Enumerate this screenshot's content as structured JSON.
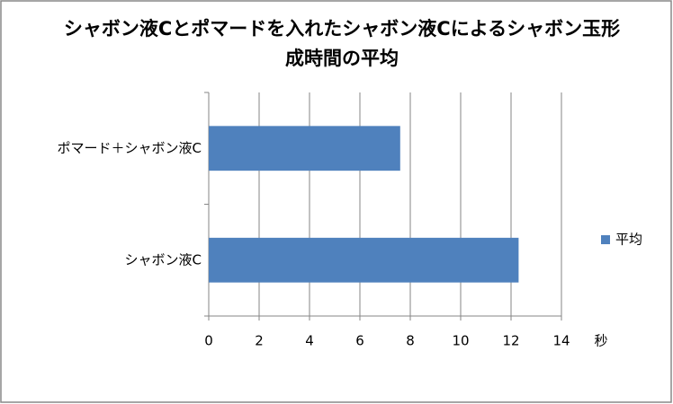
{
  "chart_data": {
    "type": "bar",
    "orientation": "horizontal",
    "title": "シャボン液Cとポマードを入れたシャボン液Cによるシャボン玉形成時間の平均",
    "x_label": "秒",
    "categories": [
      "ポマード＋シャボン液C",
      "シャボン液C"
    ],
    "series": [
      {
        "name": "平均",
        "color": "#4f81bd",
        "values": [
          7.6,
          12.3
        ]
      }
    ],
    "xlim": [
      0,
      14
    ],
    "xticks": [
      0,
      2,
      4,
      6,
      8,
      10,
      12,
      14
    ],
    "grid": true,
    "legend": "right"
  }
}
